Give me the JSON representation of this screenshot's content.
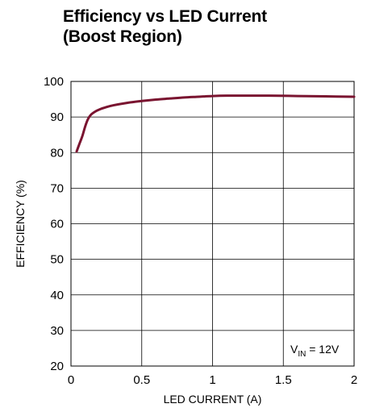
{
  "chart_data": {
    "type": "line",
    "title_line1": "Efficiency vs LED Current",
    "title_line2": "(Boost Region)",
    "xlabel": "LED CURRENT (A)",
    "ylabel": "EFFICIENCY (%)",
    "xlim": [
      0,
      2
    ],
    "ylim": [
      20,
      100
    ],
    "x_ticks": [
      0,
      0.5,
      1,
      1.5,
      2
    ],
    "x_tick_labels": [
      "0",
      "0.5",
      "1",
      "1.5",
      "2"
    ],
    "y_ticks": [
      20,
      30,
      40,
      50,
      60,
      70,
      80,
      90,
      100
    ],
    "y_tick_labels": [
      "20",
      "30",
      "40",
      "50",
      "60",
      "70",
      "80",
      "90",
      "100"
    ],
    "grid": true,
    "annotation": {
      "main": "V",
      "sub": "IN",
      "rest": " = 12V"
    },
    "line_color": "#7a1430",
    "series": [
      {
        "x": [
          0.04,
          0.06,
          0.08,
          0.1,
          0.12,
          0.14,
          0.17,
          0.2,
          0.25,
          0.3,
          0.4,
          0.5,
          0.6,
          0.7,
          0.8,
          0.9,
          1.0,
          1.1,
          1.2,
          1.4,
          1.6,
          1.8,
          2.0
        ],
        "y": [
          80.3,
          82.5,
          84.6,
          87.3,
          89.4,
          90.6,
          91.5,
          92.1,
          92.8,
          93.3,
          94.0,
          94.5,
          94.9,
          95.2,
          95.5,
          95.7,
          95.9,
          96.0,
          96.0,
          96.0,
          95.9,
          95.8,
          95.7
        ]
      }
    ]
  }
}
